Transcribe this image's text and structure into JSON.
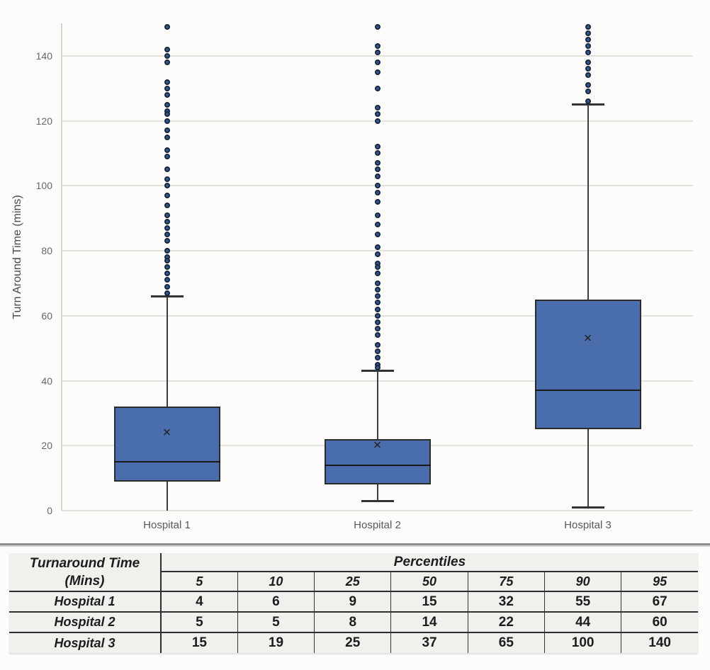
{
  "chart_data": {
    "type": "boxplot",
    "title": "",
    "xlabel": "",
    "ylabel": "Turn Around Time (mins)",
    "ylim": [
      0,
      150
    ],
    "yticks": [
      0,
      20,
      40,
      60,
      80,
      100,
      120,
      140
    ],
    "grid": true,
    "categories": [
      "Hospital 1",
      "Hospital 2",
      "Hospital 3"
    ],
    "series": [
      {
        "name": "Hospital 1",
        "whisker_low": 0,
        "q1": 9,
        "median": 15,
        "q3": 32,
        "whisker_high": 66,
        "mean": 24,
        "low_cap": false,
        "outliers": [
          149,
          142,
          140,
          138,
          132,
          130,
          128,
          125,
          123,
          122,
          120,
          117,
          115,
          111,
          109,
          105,
          102,
          100,
          97,
          94,
          91,
          89,
          87,
          85,
          83,
          80,
          78,
          77,
          75,
          73,
          71,
          69,
          67
        ]
      },
      {
        "name": "Hospital 2",
        "whisker_low": 3,
        "q1": 8,
        "median": 14,
        "q3": 22,
        "whisker_high": 43,
        "mean": 20,
        "low_cap": true,
        "outliers": [
          149,
          143,
          141,
          138,
          135,
          130,
          124,
          122,
          120,
          112,
          110,
          107,
          105,
          103,
          100,
          98,
          95,
          91,
          88,
          85,
          81,
          79,
          76,
          75,
          73,
          70,
          68,
          66,
          64,
          62,
          60,
          58,
          56,
          54,
          51,
          49,
          47,
          45,
          44
        ]
      },
      {
        "name": "Hospital 3",
        "whisker_low": 1,
        "q1": 25,
        "median": 37,
        "q3": 65,
        "whisker_high": 125,
        "mean": 53,
        "low_cap": true,
        "outliers": [
          149,
          147,
          145,
          143,
          141,
          138,
          136,
          134,
          131,
          129,
          126
        ]
      }
    ],
    "colors": {
      "box_fill": "#4a6dab",
      "box_border": "#2b2b2b",
      "whisker": "#3c3c3c",
      "outlier_fill": "#35588f",
      "outlier_border": "#16263c",
      "gridline": "#e5e2db",
      "axis_line": "#d9d6cf",
      "tick_label": "#666666",
      "category_label": "#595959",
      "axis_title": "#4a4a4a"
    }
  },
  "table": {
    "row_header_title": "Turnaround Time",
    "row_header_subtitle": "(Mins)",
    "group_header": "Percentiles",
    "columns": [
      "5",
      "10",
      "25",
      "50",
      "75",
      "90",
      "95"
    ],
    "rows": [
      {
        "label": "Hospital 1",
        "values": [
          "4",
          "6",
          "9",
          "15",
          "32",
          "55",
          "67"
        ]
      },
      {
        "label": "Hospital 2",
        "values": [
          "5",
          "5",
          "8",
          "14",
          "22",
          "44",
          "60"
        ]
      },
      {
        "label": "Hospital 3",
        "values": [
          "15",
          "19",
          "25",
          "37",
          "65",
          "100",
          "140"
        ]
      }
    ]
  }
}
